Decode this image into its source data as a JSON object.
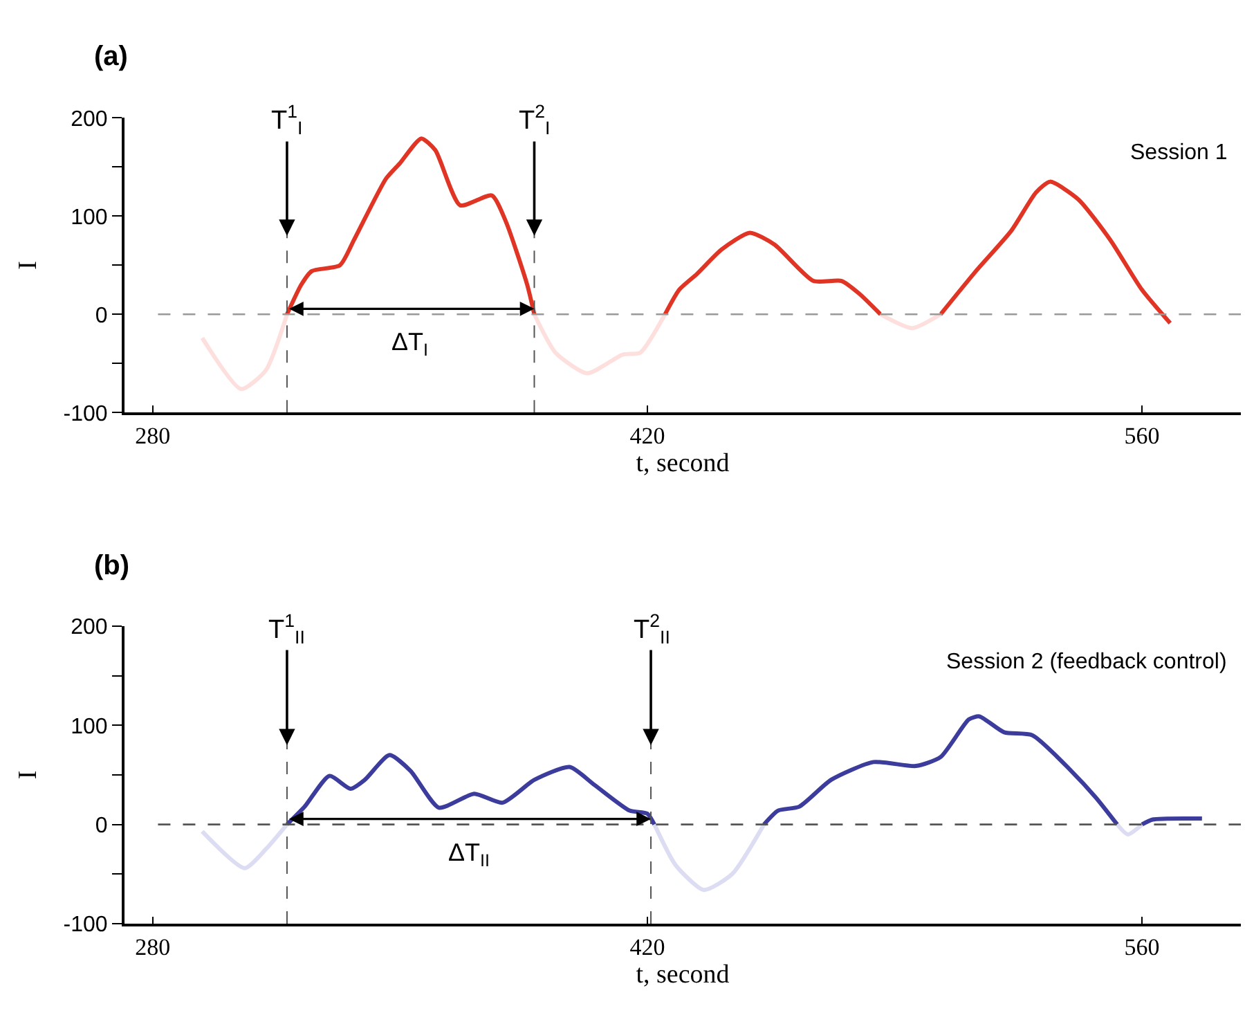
{
  "chart_data": [
    {
      "type": "line",
      "title": "(a)",
      "xlabel": "t, second",
      "ylabel": "I",
      "x": [
        294,
        305,
        312,
        318,
        322,
        325,
        333,
        337,
        346,
        350,
        356,
        360,
        367,
        376,
        380,
        386,
        388,
        394,
        403,
        413,
        418,
        425,
        429,
        434,
        441,
        449,
        456,
        467,
        475,
        480,
        486,
        495,
        503,
        513,
        523,
        530,
        534,
        542,
        551,
        560,
        568
      ],
      "series": [
        {
          "color": "#e03424",
          "values": [
            null,
            null,
            null,
            0,
            30,
            44,
            50,
            76,
            138,
            154,
            179,
            167,
            111,
            121,
            94,
            30,
            0,
            null,
            null,
            null,
            null,
            0,
            25,
            41,
            66,
            83,
            71,
            34,
            34,
            21,
            0,
            null,
            0,
            44,
            85,
            124,
            135,
            117,
            76,
            25,
            -9
          ]
        },
        {
          "color": "#fde0de",
          "values": [
            -24,
            -76,
            -57,
            0,
            null,
            null,
            null,
            null,
            null,
            null,
            null,
            null,
            null,
            null,
            null,
            null,
            0,
            -39,
            -60,
            -41,
            -39,
            0,
            null,
            null,
            null,
            null,
            null,
            null,
            null,
            null,
            0,
            -14,
            0,
            null,
            null,
            null,
            null,
            null,
            null,
            null,
            null
          ]
        }
      ],
      "xlim": [
        272,
        588
      ],
      "xticks": [
        280,
        420,
        560
      ],
      "ylim": [
        -100,
        200
      ],
      "yticks": [
        -100,
        {
          "value": -50,
          "label": null
        },
        0,
        {
          "value": 50,
          "label": null
        },
        100,
        {
          "value": 150,
          "label": null
        },
        200
      ],
      "ref_lines": [
        {
          "axis": "y",
          "value": 0,
          "color": "#999999",
          "line_style": "dashed"
        },
        {
          "axis": "x",
          "value": 318,
          "label": "T$^{1}$$_{I}$",
          "color": "#555555",
          "line_style": "dashed"
        },
        {
          "axis": "x",
          "value": 388,
          "label": "T$^{2}$$_{I}$",
          "color": "#555555",
          "line_style": "dashed"
        }
      ],
      "annotations": [
        "Session 1",
        "ΔT$_{I}$"
      ],
      "marker": "none",
      "line_style": "solid"
    },
    {
      "type": "line",
      "title": "(b)",
      "xlabel": "t, second",
      "ylabel": "I",
      "x": [
        294,
        306,
        312,
        318,
        323,
        330,
        336,
        340,
        347,
        353,
        361,
        371,
        379,
        388,
        398,
        405,
        415,
        420,
        422,
        428,
        436,
        444,
        453,
        457,
        463,
        472,
        484,
        496,
        503,
        511,
        514,
        521,
        529,
        540,
        547,
        553,
        556,
        560,
        563,
        577
      ],
      "series": [
        {
          "color": "#3c3c9c",
          "values": [
            null,
            null,
            null,
            0,
            18,
            49,
            36,
            45,
            70,
            54,
            17,
            31,
            22,
            45,
            58,
            40,
            14,
            11,
            0,
            null,
            null,
            null,
            0,
            14,
            18,
            45,
            63,
            59,
            68,
            106,
            109,
            93,
            90,
            54,
            27,
            0,
            null,
            0,
            5,
            6
          ]
        },
        {
          "color": "#dcdcf2",
          "values": [
            -7,
            -44,
            -25,
            0,
            null,
            null,
            null,
            null,
            null,
            null,
            null,
            null,
            null,
            null,
            null,
            null,
            null,
            null,
            0,
            -41,
            -66,
            -50,
            0,
            null,
            null,
            null,
            null,
            null,
            null,
            null,
            null,
            null,
            null,
            null,
            null,
            0,
            -10,
            0,
            null,
            null
          ]
        }
      ],
      "xlim": [
        272,
        588
      ],
      "xticks": [
        280,
        420,
        560
      ],
      "ylim": [
        -100,
        200
      ],
      "yticks": [
        -100,
        {
          "value": -50,
          "label": null
        },
        0,
        {
          "value": 50,
          "label": null
        },
        100,
        {
          "value": 150,
          "label": null
        },
        200
      ],
      "ref_lines": [
        {
          "axis": "y",
          "value": 0,
          "color": "#555555",
          "line_style": "dashed"
        },
        {
          "axis": "x",
          "value": 318,
          "label": "T$^{1}$$_{II}$",
          "color": "#555555",
          "line_style": "dashed"
        },
        {
          "axis": "x",
          "value": 421,
          "label": "T$^{2}$$_{II}$",
          "color": "#555555",
          "line_style": "dashed"
        }
      ],
      "annotations": [
        "Session 2 (feedback control)",
        "ΔT$_{II}$"
      ],
      "marker": "none",
      "line_style": "solid"
    }
  ]
}
